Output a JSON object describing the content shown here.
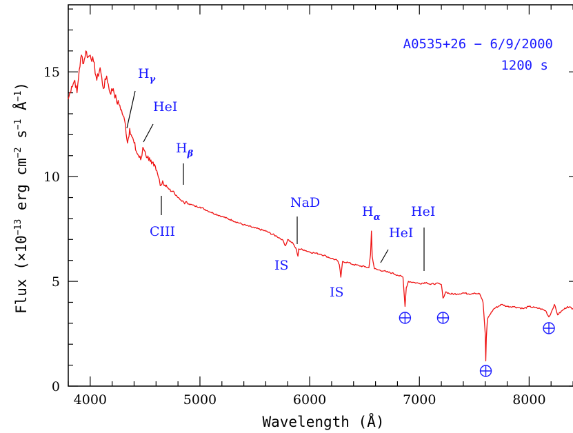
{
  "chart_data": {
    "type": "line",
    "xlabel": "Wavelength (Å)",
    "ylabel": "Flux (×10",
    "ylabel_exp1": "−13",
    "ylabel_mid": " erg cm",
    "ylabel_exp2": "−2",
    "ylabel_mid2": " s",
    "ylabel_exp3": "−1",
    "ylabel_end": " Å",
    "ylabel_exp4": "−1",
    "ylabel_close": ")",
    "xlim": [
      3800,
      8450
    ],
    "ylim": [
      0,
      18.2
    ],
    "x_ticks": [
      4000,
      5000,
      6000,
      7000,
      8000
    ],
    "x_tick_labels": [
      "4000",
      "5000",
      "6000",
      "7000",
      "8000"
    ],
    "y_ticks": [
      0,
      5,
      10,
      15
    ],
    "y_tick_labels": [
      "0",
      "5",
      "10",
      "15"
    ],
    "grid": false,
    "object_label": "A0535+26 − 6/9/2000",
    "exposure_label": "1200 s",
    "series": [
      {
        "color": "#ee1111",
        "x": [
          3800,
          3830,
          3860,
          3880,
          3900,
          3920,
          3940,
          3960,
          3980,
          4000,
          4030,
          4060,
          4090,
          4120,
          4150,
          4180,
          4210,
          4240,
          4270,
          4300,
          4320,
          4340,
          4360,
          4380,
          4400,
          4420,
          4440,
          4460,
          4471,
          4480,
          4500,
          4520,
          4540,
          4560,
          4580,
          4600,
          4620,
          4647,
          4660,
          4680,
          4700,
          4720,
          4740,
          4760,
          4780,
          4800,
          4820,
          4850,
          4861,
          4870,
          4900,
          4950,
          5000,
          5100,
          5200,
          5300,
          5400,
          5500,
          5600,
          5700,
          5750,
          5780,
          5800,
          5850,
          5880,
          5893,
          5900,
          5950,
          6000,
          6050,
          6100,
          6150,
          6200,
          6250,
          6270,
          6284,
          6300,
          6350,
          6400,
          6450,
          6500,
          6540,
          6555,
          6563,
          6570,
          6590,
          6620,
          6678,
          6700,
          6750,
          6800,
          6850,
          6869,
          6880,
          6900,
          6950,
          7000,
          7065,
          7100,
          7150,
          7200,
          7215,
          7240,
          7280,
          7350,
          7400,
          7450,
          7500,
          7550,
          7580,
          7600,
          7605,
          7610,
          7620,
          7640,
          7680,
          7750,
          7800,
          7850,
          7900,
          7950,
          8000,
          8050,
          8100,
          8150,
          8180,
          8200,
          8230,
          8260,
          8300,
          8350,
          8400,
          8450
        ],
        "y": [
          13.7,
          14.3,
          14.6,
          14.0,
          15.1,
          15.8,
          15.4,
          16.0,
          15.7,
          15.8,
          15.5,
          14.6,
          15.2,
          14.2,
          14.8,
          14.0,
          14.2,
          13.6,
          13.4,
          12.9,
          12.5,
          11.6,
          12.3,
          11.9,
          11.6,
          11.2,
          11.0,
          10.8,
          11.0,
          11.4,
          11.2,
          10.9,
          10.9,
          10.6,
          10.5,
          10.3,
          10.0,
          9.6,
          9.8,
          9.6,
          9.5,
          9.4,
          9.3,
          9.3,
          9.1,
          9.0,
          8.9,
          8.8,
          8.7,
          8.8,
          8.7,
          8.6,
          8.55,
          8.3,
          8.1,
          7.9,
          7.7,
          7.55,
          7.4,
          7.15,
          7.0,
          6.7,
          7.0,
          6.8,
          6.5,
          6.2,
          6.55,
          6.5,
          6.4,
          6.35,
          6.3,
          6.2,
          6.1,
          6.0,
          5.8,
          5.2,
          5.95,
          5.9,
          5.8,
          5.75,
          5.7,
          5.65,
          6.3,
          7.4,
          6.2,
          5.6,
          5.55,
          5.5,
          5.45,
          5.4,
          5.3,
          5.2,
          3.8,
          4.7,
          5.0,
          4.95,
          4.9,
          4.95,
          4.85,
          4.9,
          4.85,
          4.2,
          4.5,
          4.4,
          4.4,
          4.45,
          4.4,
          4.45,
          4.4,
          4.0,
          2.5,
          1.2,
          2.3,
          3.2,
          3.4,
          3.7,
          3.9,
          3.8,
          3.8,
          3.75,
          3.7,
          3.8,
          3.75,
          3.7,
          3.6,
          3.3,
          3.5,
          3.9,
          3.4,
          3.6,
          3.8,
          3.7,
          3.75
        ]
      }
    ],
    "annotations": [
      {
        "label": "H",
        "sub": "γ"
      },
      {
        "label": "HeI"
      },
      {
        "label": "H",
        "sub": "β"
      },
      {
        "label": "CIII"
      },
      {
        "label": "NaD"
      },
      {
        "label": "IS"
      },
      {
        "label": "IS"
      },
      {
        "label": "H",
        "sub": "α"
      },
      {
        "label": "HeI"
      },
      {
        "label": "HeI"
      }
    ],
    "telluric_markers": [
      6869,
      7215,
      7605,
      8180
    ]
  }
}
